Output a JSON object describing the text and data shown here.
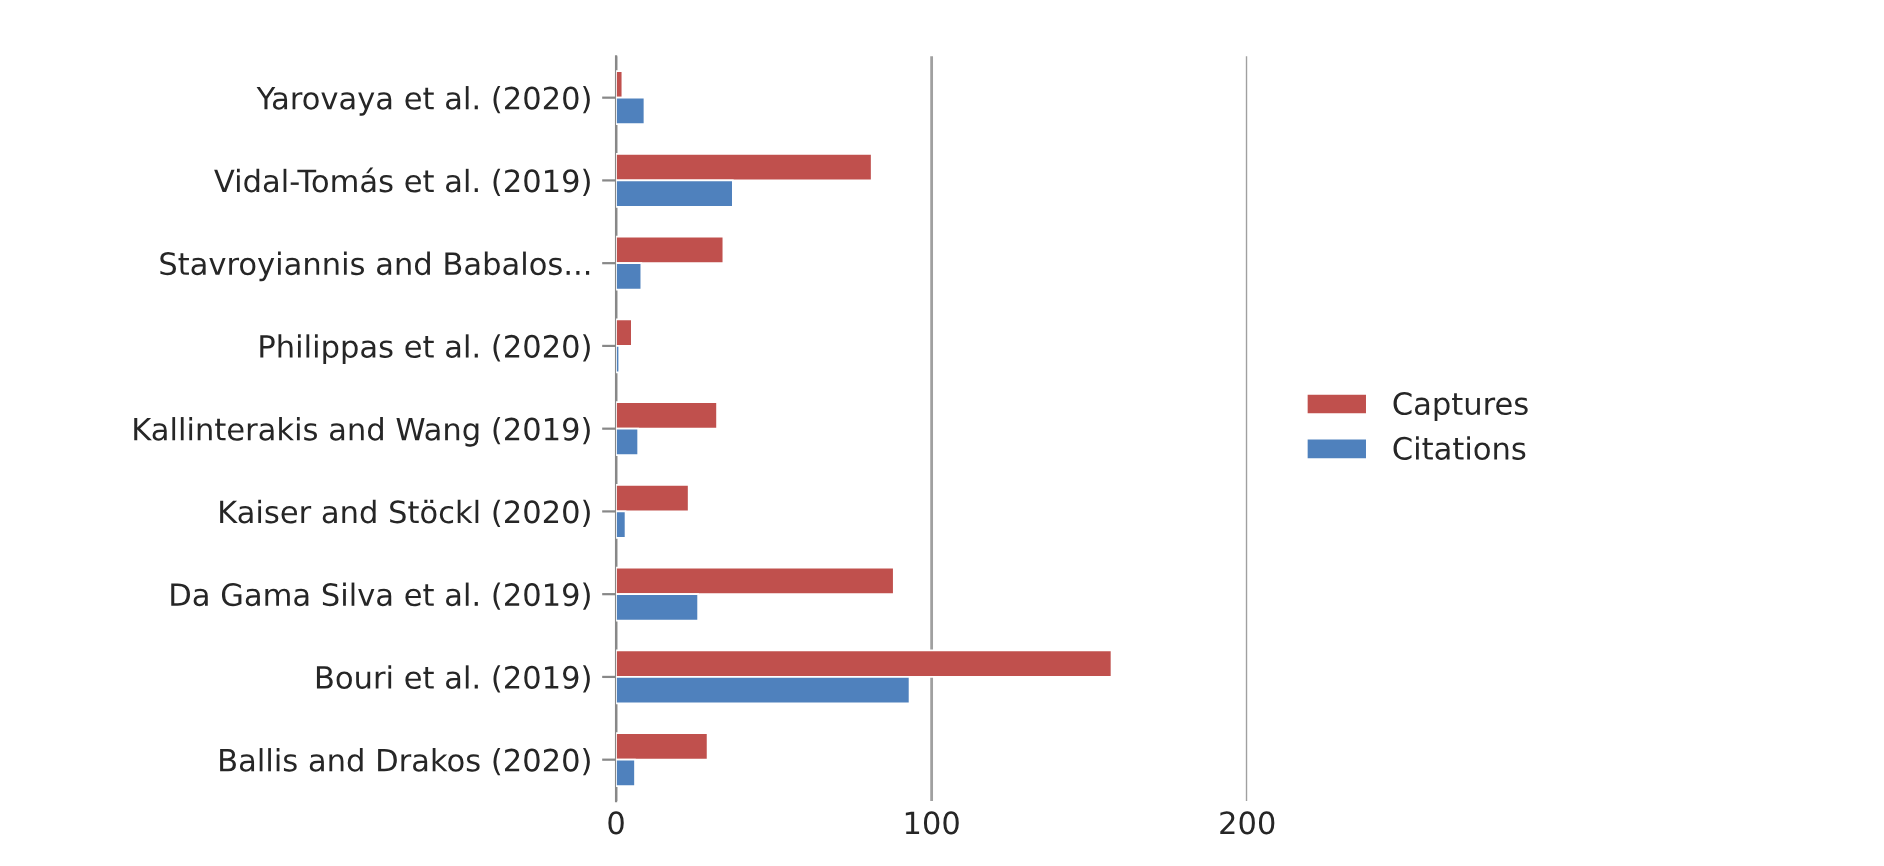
{
  "chart_data": {
    "type": "bar",
    "orientation": "horizontal",
    "categories": [
      "Yarovaya et al. (2020)",
      "Vidal-Tomás et al. (2019)",
      "Stavroyiannis and Babalos...",
      "Philippas et al. (2020)",
      "Kallinterakis and Wang (2019)",
      "Kaiser and Stöckl (2020)",
      "Da Gama Silva et al. (2019)",
      "Bouri et al. (2019)",
      "Ballis and Drakos (2020)"
    ],
    "series": [
      {
        "name": "Captures",
        "color": "#c0504d",
        "values": [
          2,
          81,
          34,
          5,
          32,
          23,
          88,
          157,
          29
        ]
      },
      {
        "name": "Citations",
        "color": "#4f81bd",
        "values": [
          9,
          37,
          8,
          1,
          7,
          3,
          26,
          93,
          6
        ]
      }
    ],
    "xlim": [
      0,
      200
    ],
    "xticks": [
      0,
      100,
      200
    ],
    "grid": "x",
    "legend": "right"
  }
}
